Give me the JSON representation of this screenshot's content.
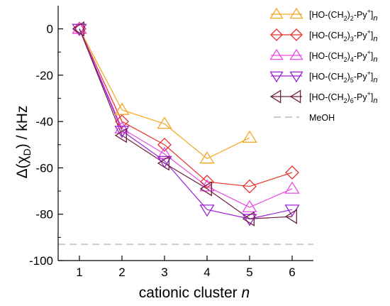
{
  "chart_data": {
    "type": "line",
    "x": [
      1,
      2,
      3,
      4,
      5,
      6
    ],
    "xlim": [
      0.5,
      6.5
    ],
    "ylim": [
      -100,
      10
    ],
    "xticks": [
      "1",
      "2",
      "3",
      "4",
      "5",
      "6"
    ],
    "yticks": [
      "0",
      "-20",
      "-40",
      "-60",
      "-80",
      "-100"
    ],
    "xlabel": {
      "pre": "cationic cluster ",
      "var": "n"
    },
    "ylabel": {
      "delta": "Δ(χ",
      "sub": "D",
      "post": ") / kHz"
    },
    "series": [
      {
        "key": "s2",
        "marker": "triangle-up",
        "color": "#f5a623",
        "values": [
          0,
          -35,
          -41,
          -56,
          -47,
          null
        ],
        "legend": {
          "a": "[HO-(CH",
          "b": "2",
          "c": ")",
          "d": "2",
          "e": "-Py",
          "f": "+",
          "g": "]",
          "h": "n"
        }
      },
      {
        "key": "s3",
        "marker": "diamond",
        "color": "#e8302a",
        "values": [
          0,
          -40,
          -50,
          -66,
          -68,
          -62
        ],
        "legend": {
          "a": "[HO-(CH",
          "b": "2",
          "c": ")",
          "d": "3",
          "e": "-Py",
          "f": "+",
          "g": "]",
          "h": "n"
        }
      },
      {
        "key": "s4",
        "marker": "triangle-up",
        "color": "#e64ce6",
        "values": [
          0,
          -43,
          -54,
          -68,
          -77,
          -69
        ],
        "legend": {
          "a": "[HO-(CH",
          "b": "2",
          "c": ")",
          "d": "4",
          "e": "-Py",
          "f": "+",
          "g": "]",
          "h": "n"
        }
      },
      {
        "key": "s5",
        "marker": "triangle-down",
        "color": "#9a22d6",
        "values": [
          0,
          -44,
          -57,
          -78,
          -82,
          -78
        ],
        "legend": {
          "a": "[HO-(CH",
          "b": "2",
          "c": ")",
          "d": "5",
          "e": "-Py",
          "f": "+",
          "g": "]",
          "h": "n"
        }
      },
      {
        "key": "s6",
        "marker": "triangle-left",
        "color": "#6b1f3f",
        "values": [
          0,
          -46,
          -58,
          -69,
          -82,
          -81
        ],
        "legend": {
          "a": "[HO-(CH",
          "b": "2",
          "c": ")",
          "d": "6",
          "e": "-Py",
          "f": "+",
          "g": "]",
          "h": "n"
        }
      }
    ],
    "reference": {
      "label": "MeOH",
      "y": -93,
      "color": "#cccccc",
      "style": "dashed"
    },
    "legend_position": "top-right",
    "grid": false
  }
}
